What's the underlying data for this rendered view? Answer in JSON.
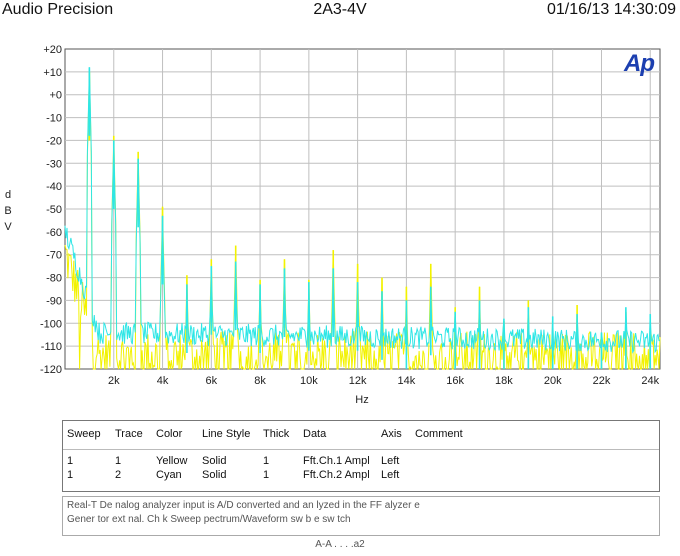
{
  "header": {
    "app_title": "Audio Precision",
    "center_title": "2A3-4V",
    "timestamp": "01/16/13 14:30:09"
  },
  "logo_text": "Ap",
  "colors": {
    "yellow_trace": "#f2f200",
    "cyan_trace": "#2ee6e6",
    "grid": "#bfbfbf",
    "logo": "#1c3fb0"
  },
  "chart_data": {
    "type": "line",
    "ylabel_lines": [
      "d",
      "B",
      "V"
    ],
    "xlabel": "Hz",
    "x_ticks": [
      {
        "v": 2000,
        "label": "2k"
      },
      {
        "v": 4000,
        "label": "4k"
      },
      {
        "v": 6000,
        "label": "6k"
      },
      {
        "v": 8000,
        "label": "8k"
      },
      {
        "v": 10000,
        "label": "10k"
      },
      {
        "v": 12000,
        "label": "12k"
      },
      {
        "v": 14000,
        "label": "14k"
      },
      {
        "v": 16000,
        "label": "16k"
      },
      {
        "v": 18000,
        "label": "18k"
      },
      {
        "v": 20000,
        "label": "20k"
      },
      {
        "v": 22000,
        "label": "22k"
      },
      {
        "v": 24000,
        "label": "24k"
      }
    ],
    "y_ticks": [
      {
        "v": 20,
        "label": "+20"
      },
      {
        "v": 10,
        "label": "+10"
      },
      {
        "v": 0,
        "label": "+0"
      },
      {
        "v": -10,
        "label": "-10"
      },
      {
        "v": -20,
        "label": "-20"
      },
      {
        "v": -30,
        "label": "-30"
      },
      {
        "v": -40,
        "label": "-40"
      },
      {
        "v": -50,
        "label": "-50"
      },
      {
        "v": -60,
        "label": "-60"
      },
      {
        "v": -70,
        "label": "-70"
      },
      {
        "v": -80,
        "label": "-80"
      },
      {
        "v": -90,
        "label": "-90"
      },
      {
        "v": -100,
        "label": "-100"
      },
      {
        "v": -110,
        "label": "-110"
      },
      {
        "v": -120,
        "label": "-120"
      }
    ],
    "xlim": [
      0,
      24400
    ],
    "ylim": [
      -120,
      20
    ],
    "grid": true,
    "fundamental_hz": 1000,
    "series": [
      {
        "trace": 1,
        "color": "#f2f200",
        "noise_floor_db": -112,
        "peaks": [
          {
            "x": 1000,
            "y": 10
          },
          {
            "x": 2000,
            "y": -18
          },
          {
            "x": 3000,
            "y": -25
          },
          {
            "x": 4000,
            "y": -49
          },
          {
            "x": 5000,
            "y": -79
          },
          {
            "x": 6000,
            "y": -72
          },
          {
            "x": 7000,
            "y": -66
          },
          {
            "x": 8000,
            "y": -81
          },
          {
            "x": 9000,
            "y": -72
          },
          {
            "x": 10000,
            "y": -81
          },
          {
            "x": 11000,
            "y": -68
          },
          {
            "x": 12000,
            "y": -74
          },
          {
            "x": 13000,
            "y": -80
          },
          {
            "x": 14000,
            "y": -84
          },
          {
            "x": 15000,
            "y": -74
          },
          {
            "x": 16000,
            "y": -93
          },
          {
            "x": 17000,
            "y": -84
          },
          {
            "x": 18000,
            "y": -99
          },
          {
            "x": 19000,
            "y": -90
          },
          {
            "x": 20000,
            "y": -99
          },
          {
            "x": 21000,
            "y": -92
          },
          {
            "x": 22000,
            "y": -106
          },
          {
            "x": 23000,
            "y": -95
          },
          {
            "x": 24000,
            "y": -102
          }
        ]
      },
      {
        "trace": 2,
        "color": "#2ee6e6",
        "noise_floor_db": -104,
        "peaks": [
          {
            "x": 1000,
            "y": 12
          },
          {
            "x": 2000,
            "y": -20
          },
          {
            "x": 3000,
            "y": -28
          },
          {
            "x": 4000,
            "y": -53
          },
          {
            "x": 5000,
            "y": -83
          },
          {
            "x": 6000,
            "y": -75
          },
          {
            "x": 7000,
            "y": -73
          },
          {
            "x": 8000,
            "y": -83
          },
          {
            "x": 9000,
            "y": -76
          },
          {
            "x": 10000,
            "y": -82
          },
          {
            "x": 11000,
            "y": -76
          },
          {
            "x": 12000,
            "y": -82
          },
          {
            "x": 13000,
            "y": -86
          },
          {
            "x": 14000,
            "y": -90
          },
          {
            "x": 15000,
            "y": -84
          },
          {
            "x": 16000,
            "y": -95
          },
          {
            "x": 17000,
            "y": -90
          },
          {
            "x": 18000,
            "y": -98
          },
          {
            "x": 19000,
            "y": -93
          },
          {
            "x": 20000,
            "y": -97
          },
          {
            "x": 21000,
            "y": -96
          },
          {
            "x": 22000,
            "y": -104
          },
          {
            "x": 23000,
            "y": -93
          },
          {
            "x": 24000,
            "y": -96
          }
        ]
      }
    ]
  },
  "legend": {
    "headers": [
      "Sweep",
      "Trace",
      "Color",
      "Line Style",
      "Thick",
      "Data",
      "Axis",
      "Comment"
    ],
    "rows": [
      {
        "sweep": "1",
        "trace": "1",
        "color": "Yellow",
        "style": "Solid",
        "thick": "1",
        "data": "Fft.Ch.1 Ampl",
        "axis": "Left",
        "comment": ""
      },
      {
        "sweep": "1",
        "trace": "2",
        "color": "Cyan",
        "style": "Solid",
        "thick": "1",
        "data": "Fft.Ch.2 Ampl",
        "axis": "Left",
        "comment": ""
      }
    ]
  },
  "notes": {
    "line1": "Real-T  De   nalog analyzer input is A/D converted and an  lyzed in  the  FF  alyzer  e",
    "line2": "Gener  tor ext  nal. Ch  k  Sweep  pectrum/Waveform  sw  b  e   sw tch",
    "footer": "A-A  . . . .a2"
  }
}
